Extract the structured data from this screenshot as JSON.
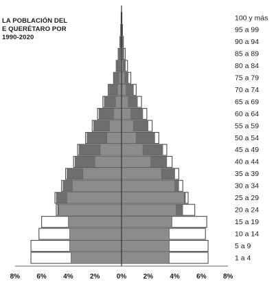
{
  "chart_data": {
    "type": "bar",
    "orientation": "horizontal-population-pyramid",
    "title_lines": [
      "LA POBLACIÓN DEL",
      "E QUERÉTARO POR",
      "1990-2020"
    ],
    "categories": [
      "1 a 4",
      "5 a 9",
      "10 a 14",
      "15 a 19",
      "20 a 24",
      "25 a 29",
      "30 a 34",
      "35 a 39",
      "40 a 44",
      "45 a 49",
      "50 a 54",
      "55 a 59",
      "60 a 64",
      "65 a 69",
      "70 a 74",
      "75 a 79",
      "80 a 84",
      "85 a 89",
      "90 a 94",
      "95 a 99",
      "100 y más"
    ],
    "x_ticks": [
      "8%",
      "6%",
      "4%",
      "2%",
      "0%",
      "2%",
      "4%",
      "6%",
      "8%"
    ],
    "xlim": [
      -8,
      8
    ],
    "series": [
      {
        "side": "left",
        "style": "outlined",
        "values": [
          6.8,
          6.8,
          6.2,
          6.0,
          4.9,
          5.0,
          4.5,
          4.2,
          3.6,
          3.3,
          2.7,
          2.2,
          1.8,
          1.4,
          1.0,
          0.6,
          0.4,
          0.25,
          0.12,
          0.06,
          0.03
        ]
      },
      {
        "side": "left",
        "style": "dark",
        "values": [
          3.8,
          3.9,
          3.9,
          4.0,
          4.8,
          4.9,
          4.4,
          4.1,
          3.5,
          3.2,
          2.6,
          2.1,
          1.7,
          1.3,
          0.95,
          0.55,
          0.35,
          0.2,
          0.1,
          0.05,
          0.02
        ]
      },
      {
        "side": "left",
        "style": "medium",
        "values": [
          3.8,
          3.9,
          3.9,
          4.0,
          4.7,
          4.1,
          3.7,
          2.9,
          2.0,
          1.6,
          1.1,
          0.9,
          0.6,
          0.45,
          0.3,
          0.2,
          0.1,
          0.06,
          0.03,
          0.02,
          0.01
        ]
      },
      {
        "side": "right",
        "style": "outlined",
        "values": [
          6.5,
          6.5,
          6.3,
          6.4,
          5.5,
          5.0,
          4.6,
          4.3,
          3.8,
          3.4,
          2.8,
          2.3,
          1.9,
          1.5,
          1.1,
          0.7,
          0.45,
          0.28,
          0.14,
          0.07,
          0.03
        ]
      },
      {
        "side": "right",
        "style": "dark",
        "values": [
          3.6,
          3.6,
          3.6,
          3.8,
          4.6,
          4.8,
          4.3,
          4.0,
          3.4,
          3.1,
          2.5,
          2.0,
          1.6,
          1.2,
          0.9,
          0.5,
          0.3,
          0.18,
          0.09,
          0.04,
          0.02
        ]
      },
      {
        "side": "right",
        "style": "medium",
        "values": [
          3.6,
          3.6,
          3.6,
          3.8,
          4.1,
          4.7,
          4.0,
          3.0,
          2.2,
          1.6,
          1.1,
          0.9,
          0.7,
          0.5,
          0.35,
          0.25,
          0.12,
          0.07,
          0.04,
          0.02,
          0.01
        ]
      }
    ],
    "colors": {
      "outlined_fill": "#ffffff",
      "outlined_stroke": "#4a4a4a",
      "dark": "#6e6e6e",
      "medium": "#8c8c8c",
      "axis": "#333333"
    },
    "grid": false,
    "legend": "none"
  }
}
